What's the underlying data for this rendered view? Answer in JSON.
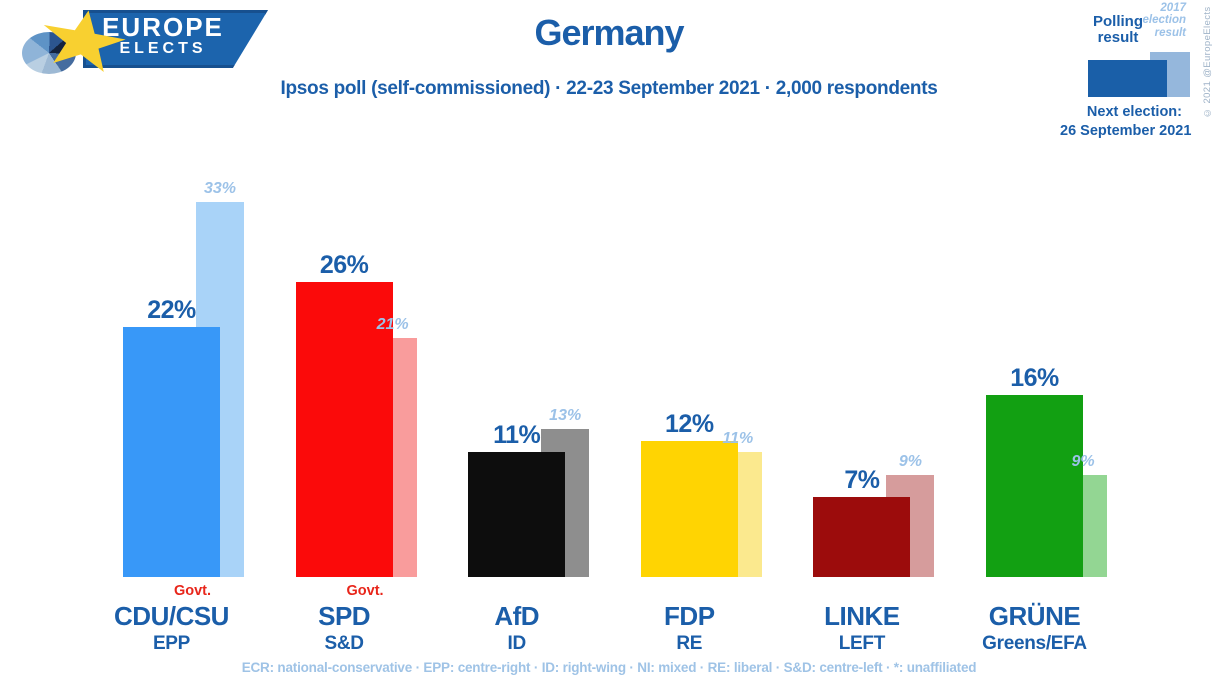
{
  "header": {
    "logo": {
      "line1": "EUROPE",
      "line2": "ELECTS"
    },
    "title": "Germany",
    "subtitle": "Ipsos poll (self-commissioned) · 22-23 September 2021 · 2,000 respondents",
    "legend": {
      "polling_label": "Polling result",
      "election_label": "2017 election result",
      "polling_color": "#1a5fa8",
      "election_color": "#95b7dc"
    },
    "next_election_label": "Next election:",
    "next_election_date": "26 September 2021",
    "copyright": "© 2021 @EuropeElects"
  },
  "chart_data": {
    "type": "bar",
    "title": "Germany",
    "subtitle": "Ipsos poll (self-commissioned) · 22-23 September 2021 · 2,000 respondents",
    "unit": "%",
    "ylim": [
      0,
      35
    ],
    "grid": false,
    "legend_position": "top-right",
    "series_names": [
      "Polling result",
      "2017 election result"
    ],
    "govt_label": "Govt.",
    "categories": [
      "CDU/CSU",
      "SPD",
      "AfD",
      "FDP",
      "LINKE",
      "GRÜNE"
    ],
    "groups": [
      {
        "party": "CDU/CSU",
        "eu_group": "EPP",
        "govt": true,
        "poll": 22,
        "poll_label": "22%",
        "election": 33,
        "election_label": "33%",
        "poll_color": "#3898f8",
        "election_color": "#a9d3f8"
      },
      {
        "party": "SPD",
        "eu_group": "S&D",
        "govt": true,
        "poll": 26,
        "poll_label": "26%",
        "election": 21,
        "election_label": "21%",
        "poll_color": "#fb0a0a",
        "election_color": "#f99c9c"
      },
      {
        "party": "AfD",
        "eu_group": "ID",
        "govt": false,
        "poll": 11,
        "poll_label": "11%",
        "election": 13,
        "election_label": "13%",
        "poll_color": "#0d0d0d",
        "election_color": "#8e8e8e"
      },
      {
        "party": "FDP",
        "eu_group": "RE",
        "govt": false,
        "poll": 12,
        "poll_label": "12%",
        "election": 11,
        "election_label": "11%",
        "poll_color": "#ffd402",
        "election_color": "#fbe98e"
      },
      {
        "party": "LINKE",
        "eu_group": "LEFT",
        "govt": false,
        "poll": 7,
        "poll_label": "7%",
        "election": 9,
        "election_label": "9%",
        "poll_color": "#9c0c0c",
        "election_color": "#d69c9c"
      },
      {
        "party": "GRÜNE",
        "eu_group": "Greens/EFA",
        "govt": false,
        "poll": 16,
        "poll_label": "16%",
        "election": 9,
        "election_label": "9%",
        "poll_color": "#12a012",
        "election_color": "#93d693"
      }
    ]
  },
  "footnote": "ECR: national-conservative · EPP: centre-right · ID: right-wing · NI: mixed · RE: liberal · S&D: centre-left · *: unaffiliated"
}
